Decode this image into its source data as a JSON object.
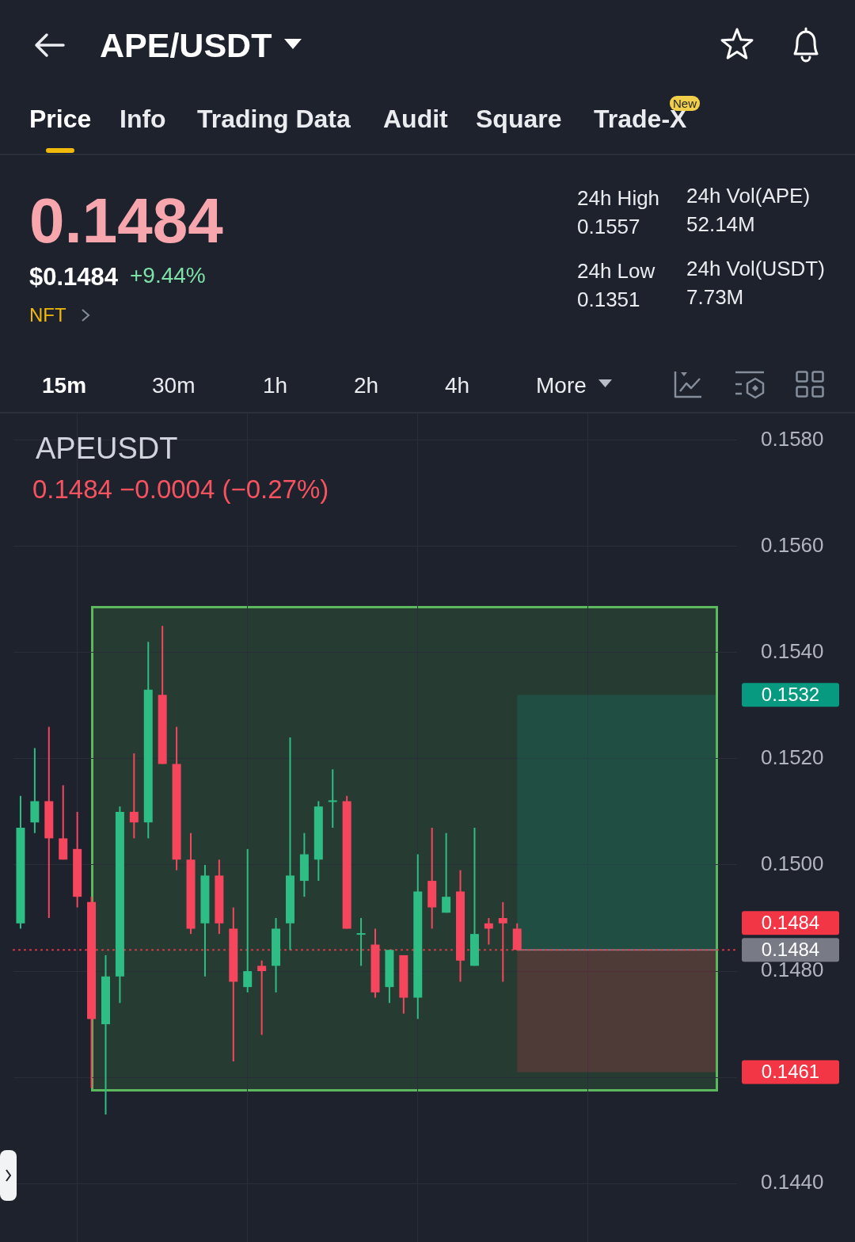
{
  "chart_data": [
    {
      "type": "other",
      "title": "APE/USDT",
      "annotations": [
        "Price",
        "Info",
        "Trading Data",
        "Audit",
        "Square",
        "Trade-X",
        "New",
        "0.1484",
        "$0.1484",
        "+9.44%",
        "NFT",
        "24h High",
        "0.1557",
        "24h Low",
        "0.1351",
        "24h Vol(APE)",
        "52.14M",
        "24h Vol(USDT)",
        "7.73M",
        "15m",
        "30m",
        "1h",
        "2h",
        "4h",
        "More"
      ]
    },
    {
      "type": "candlestick",
      "title": "APEUSDT",
      "subtitle": "0.1484 −0.0004 (−0.27%)",
      "categories": [
        null,
        null,
        null,
        null,
        null,
        null,
        null,
        null,
        null,
        null,
        null,
        null,
        null,
        null,
        null,
        null,
        null,
        null,
        null,
        null,
        null,
        null,
        null,
        null,
        null,
        null,
        null,
        null,
        null,
        null,
        null,
        null,
        null,
        null,
        null,
        null,
        null,
        null,
        null,
        null,
        null,
        null,
        null,
        null,
        null,
        null,
        null,
        null,
        null,
        null,
        null
      ],
      "ohlc": [
        [
          0.1489,
          0.1513,
          0.1488,
          0.1507
        ],
        [
          0.1508,
          0.1522,
          0.1506,
          0.1512
        ],
        [
          0.1512,
          0.1526,
          0.149,
          0.1505
        ],
        [
          0.1505,
          0.1515,
          0.1501,
          0.1501
        ],
        [
          0.1503,
          0.151,
          0.1492,
          0.1494
        ],
        [
          0.1493,
          0.1494,
          0.1458,
          0.1471
        ],
        [
          0.147,
          0.1483,
          0.1453,
          0.1479
        ],
        [
          0.1479,
          0.1511,
          0.1474,
          0.151
        ],
        [
          0.151,
          0.1521,
          0.1505,
          0.1508
        ],
        [
          0.1508,
          0.1542,
          0.1505,
          0.1533
        ],
        [
          0.1532,
          0.1545,
          0.1519,
          0.1519
        ],
        [
          0.1519,
          0.1526,
          0.1499,
          0.1501
        ],
        [
          0.1501,
          0.1506,
          0.1487,
          0.1488
        ],
        [
          0.1489,
          0.15,
          0.1479,
          0.1498
        ],
        [
          0.1498,
          0.1501,
          0.1487,
          0.1489
        ],
        [
          0.1488,
          0.1492,
          0.1463,
          0.1478
        ],
        [
          0.1477,
          0.1503,
          0.1476,
          0.148
        ],
        [
          0.1481,
          0.1482,
          0.1468,
          0.148
        ],
        [
          0.1481,
          0.149,
          0.1476,
          0.1488
        ],
        [
          0.1489,
          0.1524,
          0.1484,
          0.1498
        ],
        [
          0.1497,
          0.1506,
          0.1494,
          0.1502
        ],
        [
          0.1501,
          0.1512,
          0.1497,
          0.1511
        ],
        [
          0.1512,
          0.1518,
          0.1507,
          0.1512
        ],
        [
          0.1512,
          0.1513,
          0.1488,
          0.1488
        ],
        [
          0.1487,
          0.149,
          0.1481,
          0.1487
        ],
        [
          0.1485,
          0.1488,
          0.1475,
          0.1476
        ],
        [
          0.1477,
          0.1484,
          0.1474,
          0.1484
        ],
        [
          0.1483,
          0.1483,
          0.1472,
          0.1475
        ],
        [
          0.1475,
          0.1502,
          0.1471,
          0.1495
        ],
        [
          0.1497,
          0.1507,
          0.1488,
          0.1492
        ],
        [
          0.1491,
          0.1506,
          0.1491,
          0.1494
        ],
        [
          0.1495,
          0.1499,
          0.1478,
          0.1482
        ],
        [
          0.1481,
          0.1507,
          0.1481,
          0.1487
        ],
        [
          0.1489,
          0.149,
          0.1485,
          0.1488
        ],
        [
          0.149,
          0.1493,
          0.1478,
          0.1489
        ],
        [
          0.1488,
          0.1489,
          0.1484,
          0.1484
        ],
        null,
        null,
        null,
        null,
        null,
        null,
        null,
        null,
        null,
        null,
        null,
        null,
        null,
        null,
        null
      ],
      "colors": [
        "#2ebd85",
        "#2ebd85",
        "#f6465d",
        "#f6465d",
        "#f6465d",
        "#f6465d",
        "#2ebd85",
        "#2ebd85",
        "#f6465d",
        "#2ebd85",
        "#f6465d",
        "#f6465d",
        "#f6465d",
        "#2ebd85",
        "#f6465d",
        "#f6465d",
        "#2ebd85",
        "#f6465d",
        "#2ebd85",
        "#2ebd85",
        "#2ebd85",
        "#2ebd85",
        "#2ebd85",
        "#f6465d",
        "#2ebd85",
        "#f6465d",
        "#2ebd85",
        "#f6465d",
        "#2ebd85",
        "#f6465d",
        "#2ebd85",
        "#f6465d",
        "#2ebd85",
        "#f6465d",
        "#f6465d",
        "#f6465d",
        null,
        null,
        null,
        null,
        null,
        null,
        null,
        null,
        null,
        null,
        null,
        null,
        null,
        null,
        null
      ],
      "ylim": [
        0.1429,
        0.1585
      ],
      "yticks": [
        {
          "value": 0.158,
          "label": "0.1580"
        },
        {
          "value": 0.156,
          "label": "0.1560"
        },
        {
          "value": 0.154,
          "label": "0.1540"
        },
        {
          "value": 0.152,
          "label": "0.1520"
        },
        {
          "value": 0.15,
          "label": "0.1500"
        },
        {
          "value": 0.148,
          "label": "0.1480"
        },
        {
          "value": 0.146,
          "label": null
        },
        {
          "value": 0.144,
          "label": "0.1440"
        }
      ],
      "grid": true,
      "ref_lines": [
        {
          "axis": "y",
          "value": 0.1484,
          "label": "0.1484",
          "color": "#787b86"
        },
        {
          "axis": "y",
          "value": 0.1484,
          "label": "0.1484",
          "color": "#f23645",
          "line_style": "dotted"
        }
      ],
      "bands": [
        {
          "axis": "y",
          "from": 0.1484,
          "to": 0.1532,
          "label": "0.1532",
          "color": "#089981"
        },
        {
          "axis": "y",
          "from": 0.1484,
          "to": 0.1461,
          "label": "0.1461",
          "color": "#f23645"
        }
      ]
    }
  ]
}
